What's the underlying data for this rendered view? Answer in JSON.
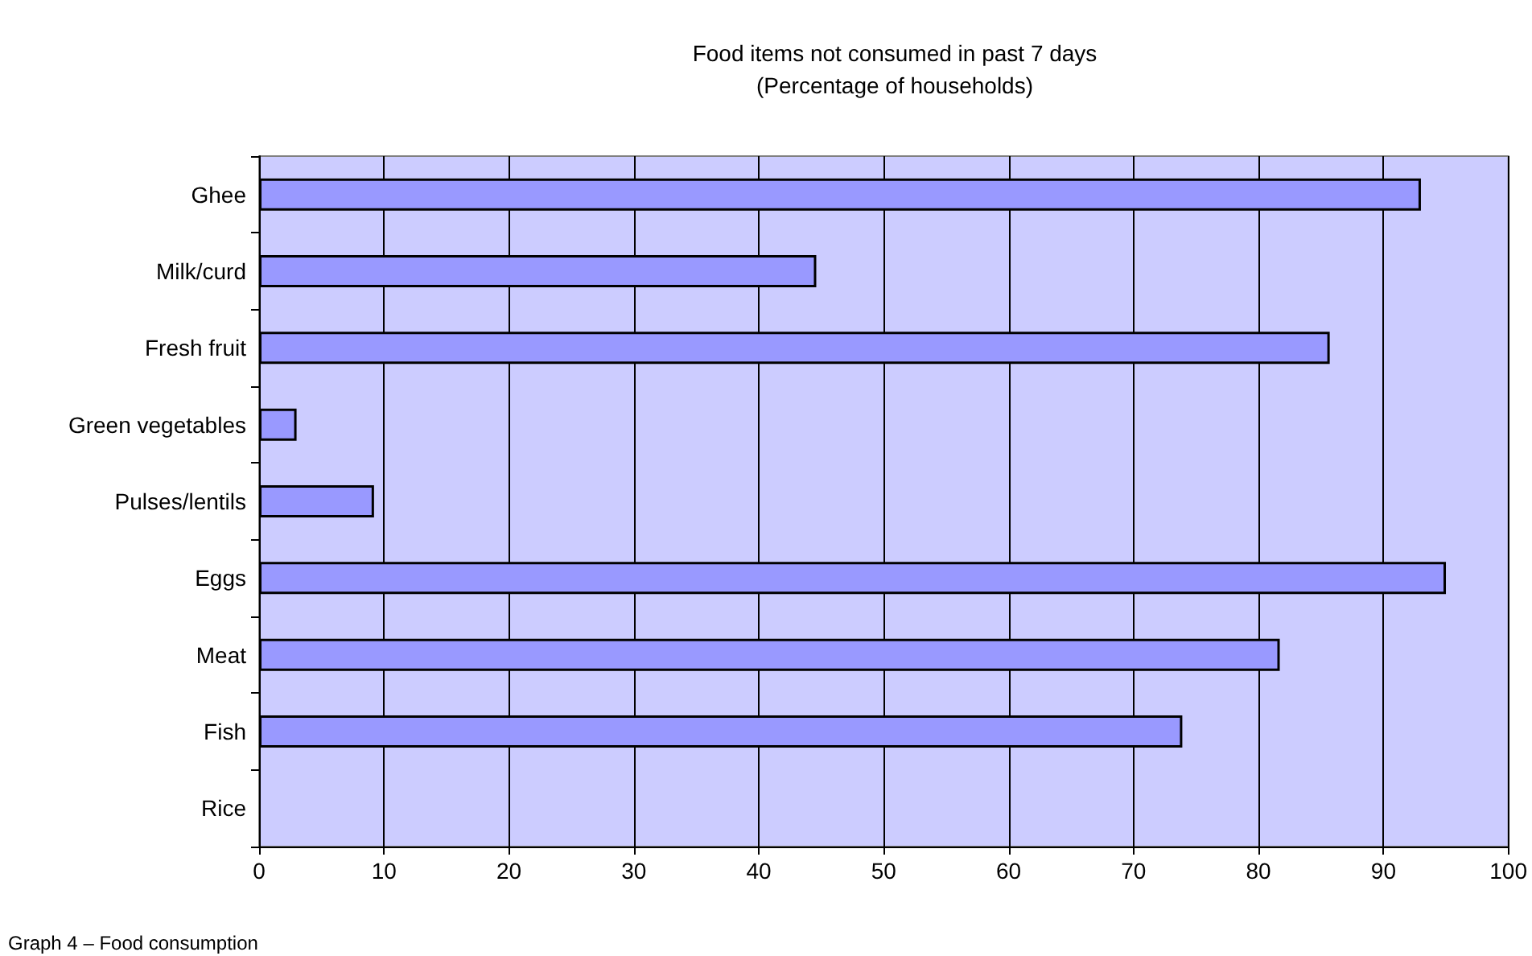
{
  "chart_data": {
    "type": "bar",
    "orientation": "horizontal",
    "title": "Food items not consumed in past 7 days\n(Percentage of households)",
    "categories": [
      "Ghee",
      "Milk/curd",
      "Fresh fruit",
      "Green vegetables",
      "Pulses/lentils",
      "Eggs",
      "Meat",
      "Fish",
      "Rice"
    ],
    "values": [
      93,
      44.6,
      85.7,
      3,
      9.2,
      95,
      81.7,
      73.9,
      0
    ],
    "color": "#9999ff",
    "xlim": [
      0,
      100
    ],
    "xticks": [
      0,
      10,
      20,
      30,
      40,
      50,
      60,
      70,
      80,
      90,
      100
    ],
    "grid": "x",
    "annotations": [
      "Graph 4 – Food consumption"
    ]
  }
}
